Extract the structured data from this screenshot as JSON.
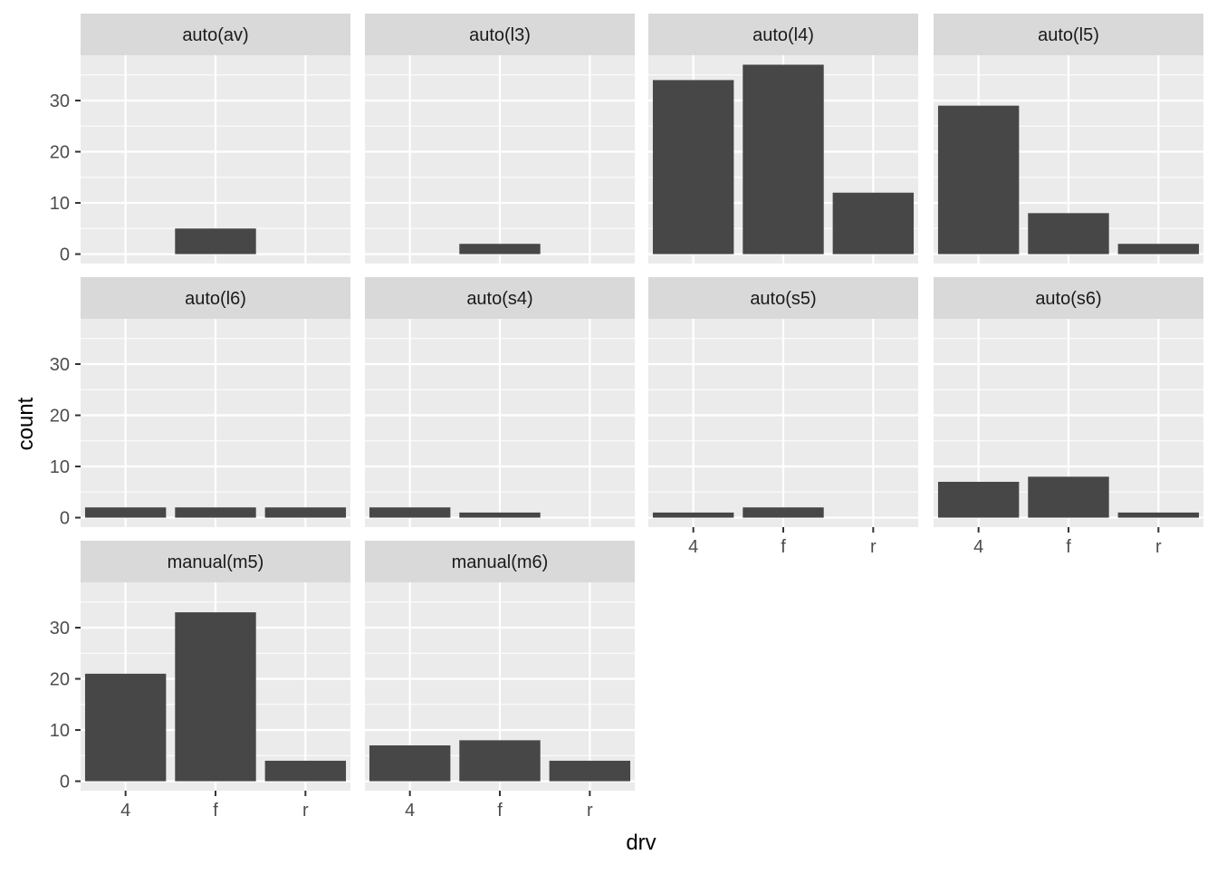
{
  "chart_data": {
    "type": "bar",
    "facet_by": "trans",
    "xlabel": "drv",
    "ylabel": "count",
    "categories": [
      "4",
      "f",
      "r"
    ],
    "y_ticks": [
      0,
      10,
      20,
      30
    ],
    "ylim": [
      -1.85,
      38.85
    ],
    "grid": true,
    "legend": "none",
    "colors": {
      "panel_bg": "#ebebeb",
      "strip_bg": "#d9d9d9",
      "bar": "#474747",
      "grid": "#ffffff",
      "text": "#4d4d4d",
      "title_text": "#1a1a1a",
      "strip_text": "#1a1a1a"
    },
    "facets": [
      {
        "label": "auto(av)",
        "values": [
          0,
          5,
          0
        ]
      },
      {
        "label": "auto(l3)",
        "values": [
          0,
          2,
          0
        ]
      },
      {
        "label": "auto(l4)",
        "values": [
          34,
          37,
          12
        ]
      },
      {
        "label": "auto(l5)",
        "values": [
          29,
          8,
          2
        ]
      },
      {
        "label": "auto(l6)",
        "values": [
          2,
          2,
          2
        ]
      },
      {
        "label": "auto(s4)",
        "values": [
          2,
          1,
          0
        ]
      },
      {
        "label": "auto(s5)",
        "values": [
          1,
          2,
          0
        ]
      },
      {
        "label": "auto(s6)",
        "values": [
          7,
          8,
          1
        ]
      },
      {
        "label": "manual(m5)",
        "values": [
          21,
          33,
          4
        ]
      },
      {
        "label": "manual(m6)",
        "values": [
          7,
          8,
          4
        ]
      }
    ]
  }
}
